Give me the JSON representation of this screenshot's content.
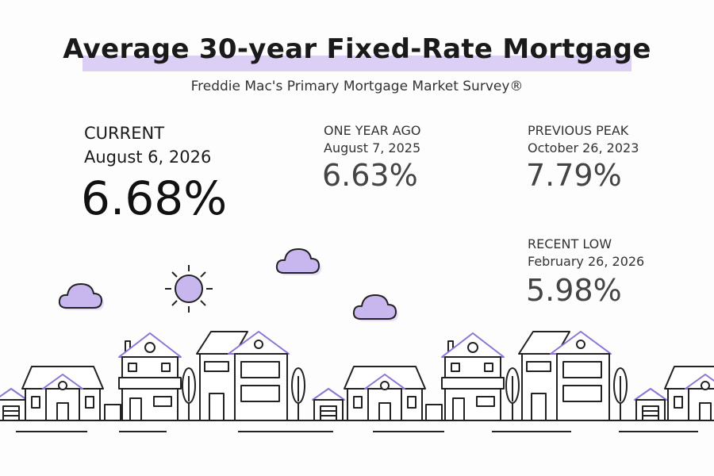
{
  "header": {
    "title": "Average 30-year Fixed-Rate Mortgage",
    "subtitle": "Freddie Mac's Primary Mortgage Market Survey®"
  },
  "stats": [
    {
      "label": "CURRENT",
      "date": "August 6, 2026",
      "value": "6.68%"
    },
    {
      "label": "ONE YEAR AGO",
      "date": "August 7, 2025",
      "value": "6.63%"
    },
    {
      "label": "PREVIOUS PEAK",
      "date": "October 26, 2023",
      "value": "7.79%"
    },
    {
      "label": "RECENT LOW",
      "date": "February 26, 2026",
      "value": "5.98%"
    }
  ]
}
